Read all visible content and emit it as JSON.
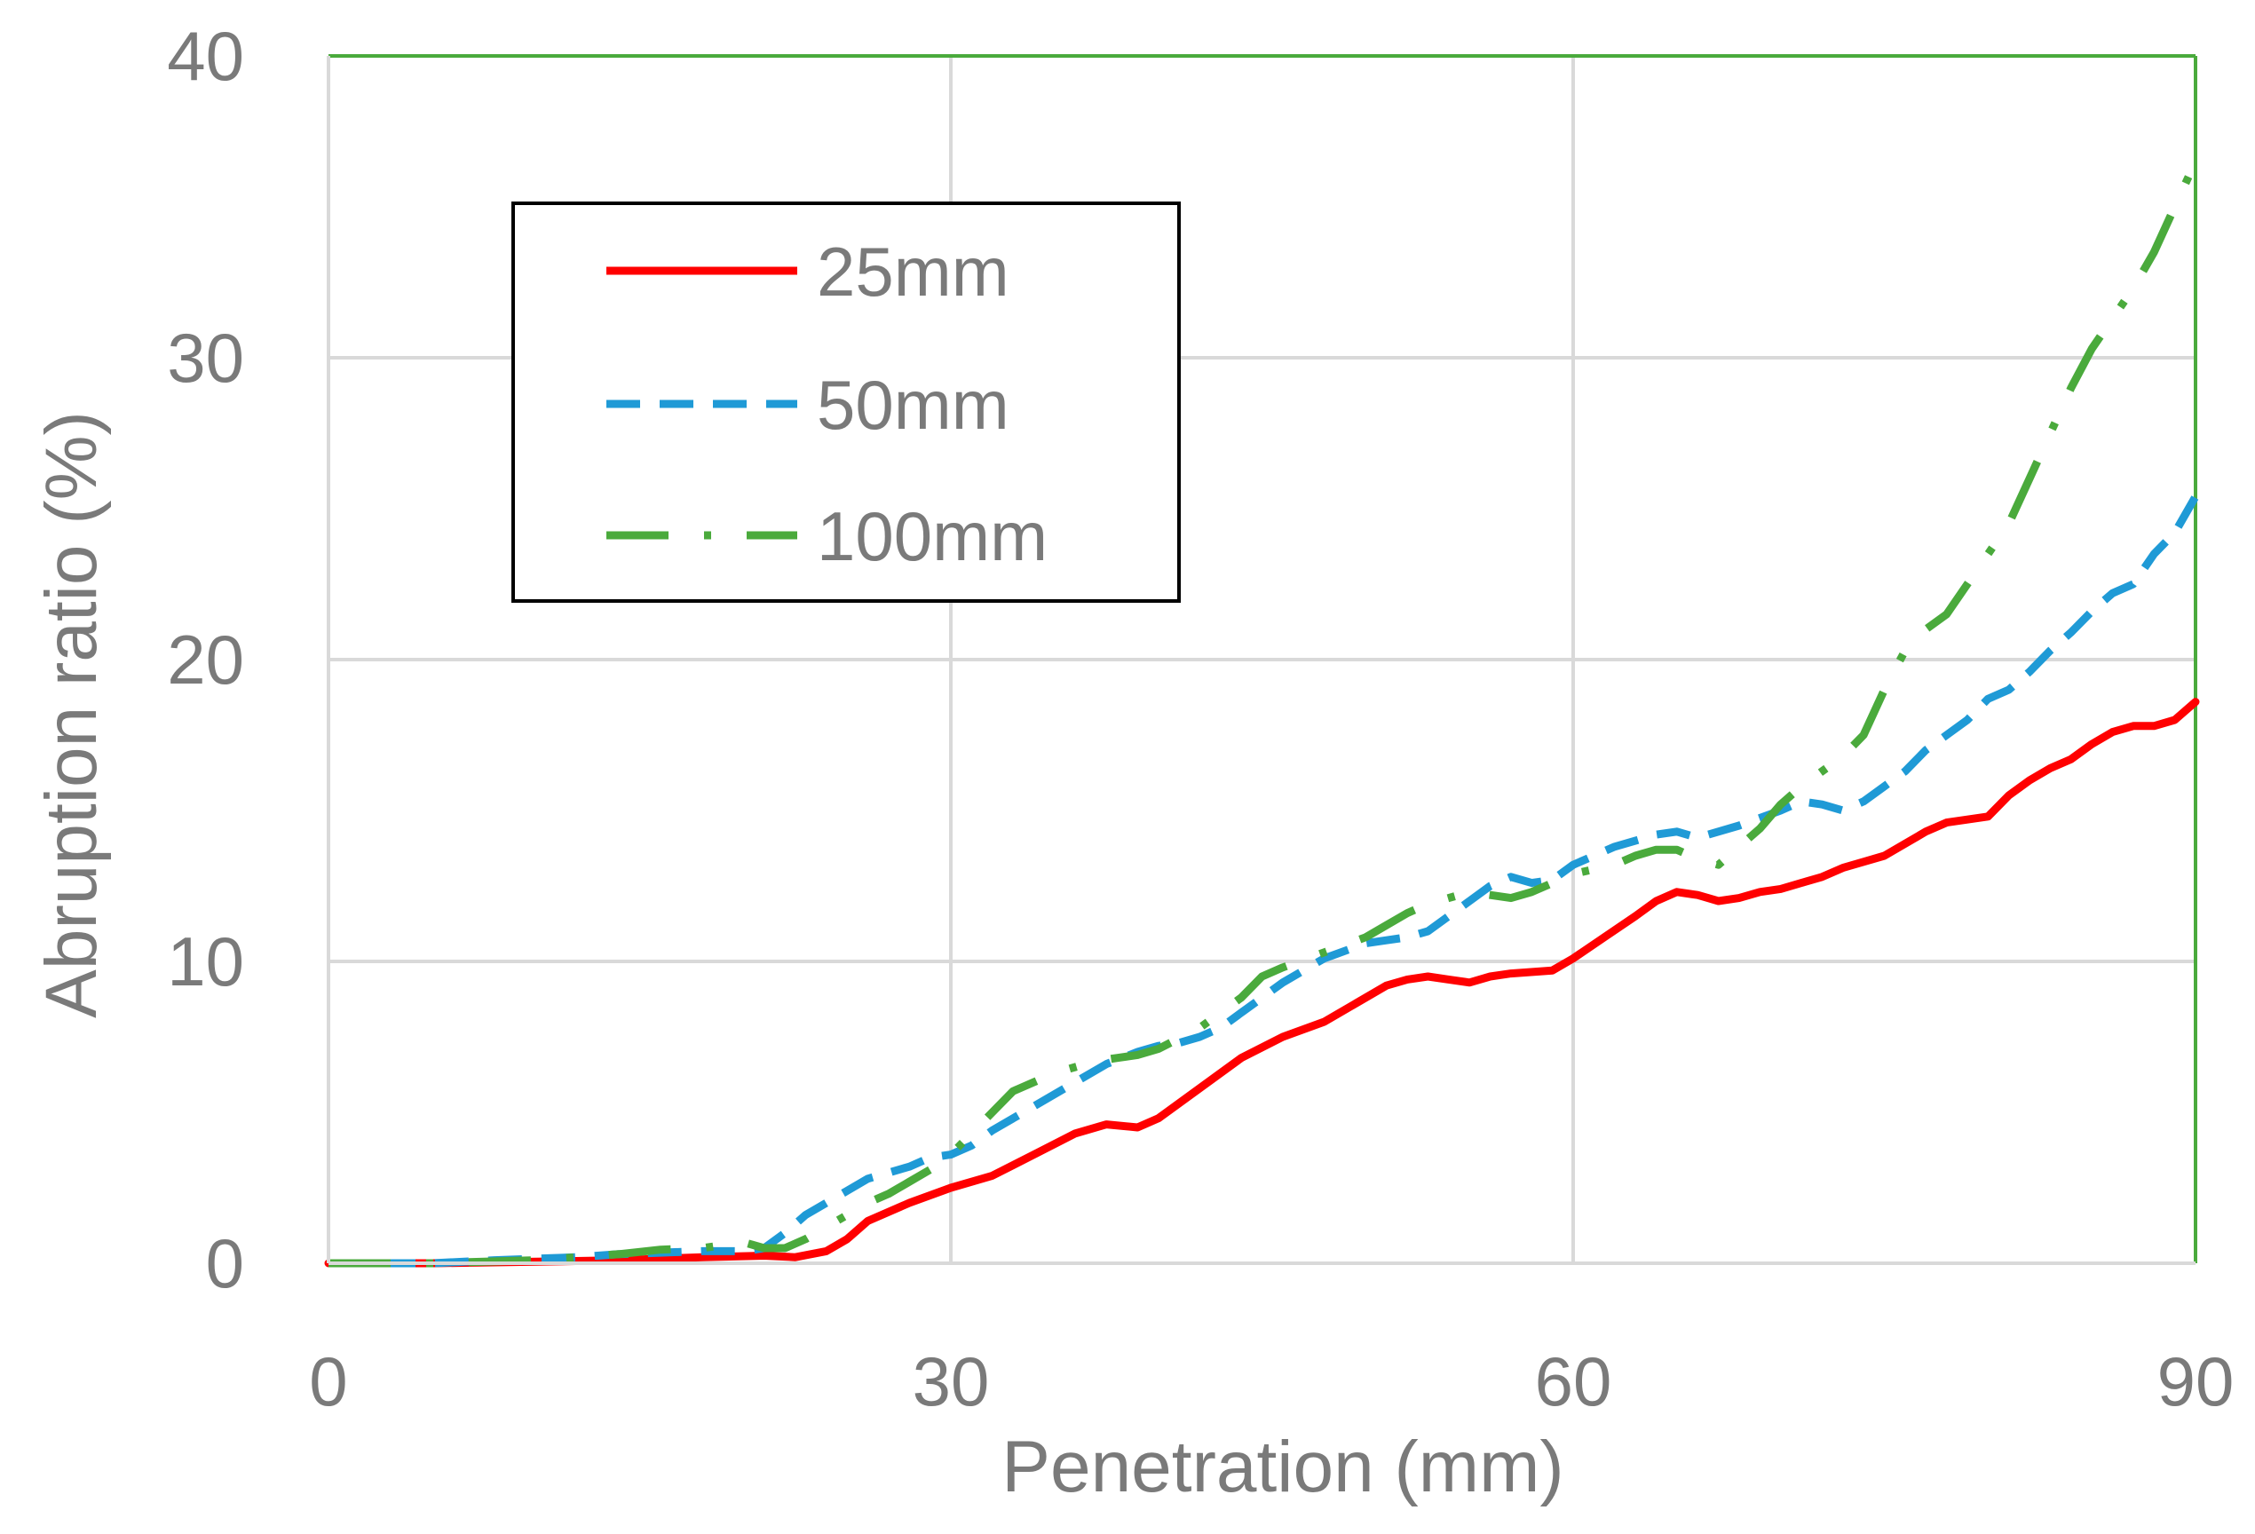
{
  "chart_data": {
    "type": "line",
    "title": "",
    "xlabel": "Penetration (mm)",
    "ylabel": "Abruption ratio (%)",
    "xlim": [
      0,
      90
    ],
    "ylim": [
      0,
      40
    ],
    "x_ticks": [
      "0",
      "30",
      "60",
      "90"
    ],
    "y_ticks": [
      "0",
      "10",
      "20",
      "30",
      "40"
    ],
    "grid": true,
    "legend_position": "top-left",
    "series": [
      {
        "name": "25mm",
        "color": "#ff0000",
        "style": "solid",
        "x": [
          0,
          5,
          10,
          14,
          18,
          21,
          22.5,
          24,
          25,
          26,
          28,
          30,
          32,
          34,
          36,
          37.5,
          39,
          40,
          42,
          44,
          46,
          48,
          50,
          51,
          52,
          53,
          54,
          55,
          56,
          57,
          59,
          60,
          61.5,
          63,
          64,
          65,
          66,
          67,
          68,
          69,
          70,
          71,
          72,
          73,
          74,
          75,
          76,
          77,
          78,
          79,
          80,
          81,
          82,
          83,
          84,
          85,
          86,
          87,
          88,
          89,
          90
        ],
        "y": [
          0,
          0,
          0.05,
          0.1,
          0.2,
          0.25,
          0.2,
          0.4,
          0.8,
          1.4,
          2.0,
          2.5,
          2.9,
          3.6,
          4.3,
          4.6,
          4.5,
          4.8,
          5.8,
          6.8,
          7.5,
          8.0,
          8.8,
          9.2,
          9.4,
          9.5,
          9.4,
          9.3,
          9.5,
          9.6,
          9.7,
          10.1,
          10.8,
          11.5,
          12.0,
          12.3,
          12.2,
          12.0,
          12.1,
          12.3,
          12.4,
          12.6,
          12.8,
          13.1,
          13.3,
          13.5,
          13.9,
          14.3,
          14.6,
          14.7,
          14.8,
          15.5,
          16.0,
          16.4,
          16.7,
          17.2,
          17.6,
          17.8,
          17.8,
          18.0,
          18.6
        ]
      },
      {
        "name": "50mm",
        "color": "#1f9ad6",
        "style": "dashed",
        "x": [
          0,
          5,
          8,
          10,
          12,
          14,
          16,
          18,
          20,
          21,
          22,
          23,
          24,
          25,
          26,
          28,
          29,
          30,
          31,
          32,
          34,
          36,
          37.5,
          39,
          40,
          41,
          42,
          43,
          44,
          46,
          48,
          50,
          51,
          52,
          53,
          54,
          55,
          56,
          57,
          58,
          59,
          60,
          62,
          64,
          65,
          66,
          68,
          70,
          71,
          72,
          73,
          74,
          75,
          76,
          77,
          78,
          79,
          80,
          81,
          82,
          83,
          84,
          85,
          86,
          87,
          88,
          89,
          90
        ],
        "y": [
          0,
          0,
          0.1,
          0.15,
          0.2,
          0.3,
          0.35,
          0.4,
          0.4,
          0.5,
          1.0,
          1.6,
          2.0,
          2.4,
          2.8,
          3.2,
          3.5,
          3.6,
          3.9,
          4.4,
          5.2,
          6.0,
          6.6,
          7.0,
          7.2,
          7.3,
          7.5,
          7.8,
          8.3,
          9.3,
          10.1,
          10.6,
          10.7,
          10.8,
          11.0,
          11.5,
          12.0,
          12.5,
          12.8,
          12.6,
          12.7,
          13.2,
          13.8,
          14.2,
          14.3,
          14.1,
          14.5,
          15.0,
          15.3,
          15.2,
          15.0,
          15.3,
          15.8,
          16.3,
          17.0,
          17.5,
          18.0,
          18.7,
          19.0,
          19.6,
          20.3,
          20.9,
          21.6,
          22.2,
          22.5,
          23.5,
          24.2,
          25.4
        ]
      },
      {
        "name": "100mm",
        "color": "#4aaa3c",
        "style": "dash-dot",
        "x": [
          0,
          5,
          10,
          14,
          16,
          18,
          19,
          20,
          21,
          22,
          23,
          24,
          25,
          26,
          27,
          28,
          29,
          30,
          31,
          32,
          33,
          34,
          35,
          36,
          37,
          38,
          39,
          40,
          42,
          44,
          45,
          46,
          48,
          50,
          51,
          52,
          53,
          54,
          55,
          56,
          57,
          58,
          59,
          60,
          62,
          63,
          64,
          65,
          66,
          67,
          68,
          69,
          70,
          71,
          72,
          73,
          74,
          75,
          76,
          77,
          78,
          79,
          80,
          81,
          82,
          83,
          84,
          85,
          86,
          87,
          88,
          89,
          90
        ],
        "y": [
          0,
          0,
          0.1,
          0.3,
          0.45,
          0.5,
          0.6,
          0.7,
          0.5,
          0.5,
          0.8,
          1.2,
          1.6,
          2.0,
          2.3,
          2.7,
          3.1,
          3.6,
          4.3,
          5.0,
          5.7,
          6.0,
          6.3,
          6.5,
          6.7,
          6.8,
          6.9,
          7.1,
          7.8,
          8.8,
          9.5,
          9.8,
          10.3,
          10.8,
          11.2,
          11.6,
          11.9,
          12.1,
          12.3,
          12.2,
          12.1,
          12.3,
          12.6,
          12.9,
          13.2,
          13.5,
          13.7,
          13.7,
          13.4,
          13.2,
          13.8,
          14.4,
          15.2,
          15.8,
          16.3,
          16.8,
          17.5,
          19.0,
          20.3,
          21.0,
          21.5,
          22.5,
          23.5,
          24.5,
          26.0,
          27.5,
          29.0,
          30.3,
          31.3,
          32.3,
          33.5,
          35.0,
          36.5
        ]
      }
    ]
  }
}
